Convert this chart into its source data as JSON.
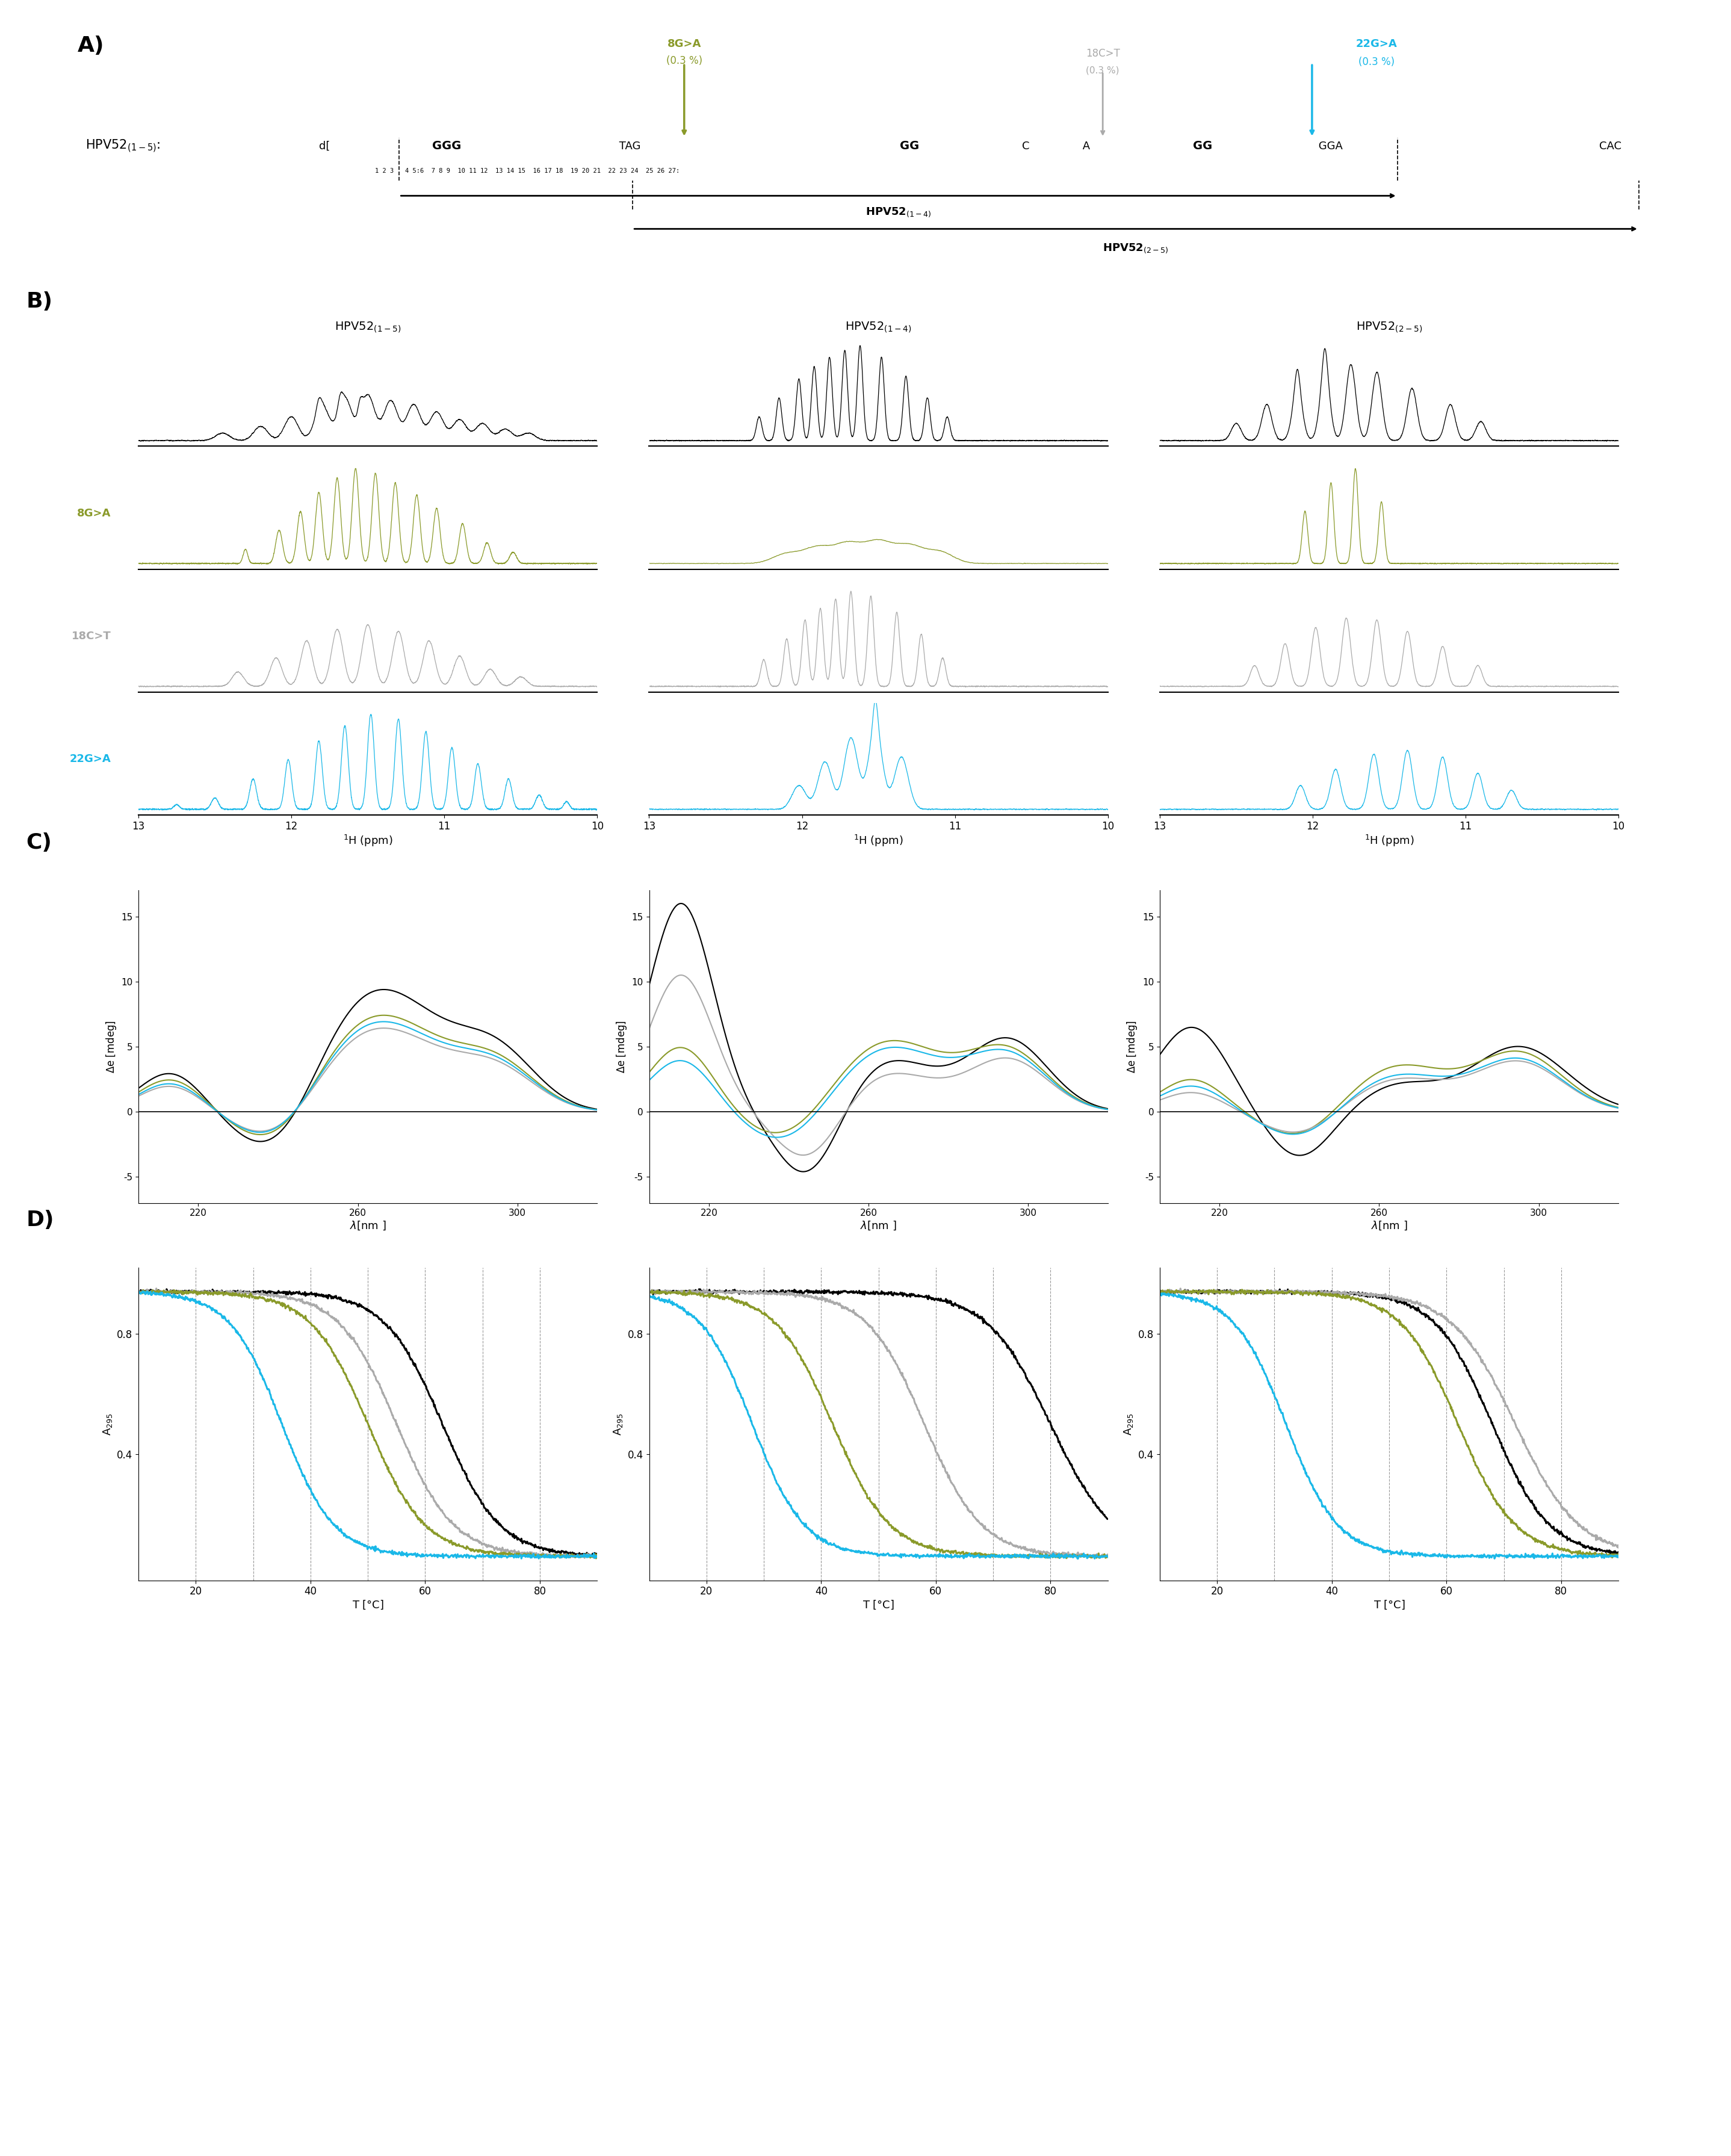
{
  "colors": {
    "black": "#000000",
    "olive": "#8a9a2a",
    "gray": "#aaaaaa",
    "cyan": "#1ab8e8",
    "white": "#ffffff"
  },
  "panel_labels": [
    "A)",
    "B)",
    "C)",
    "D)"
  ]
}
